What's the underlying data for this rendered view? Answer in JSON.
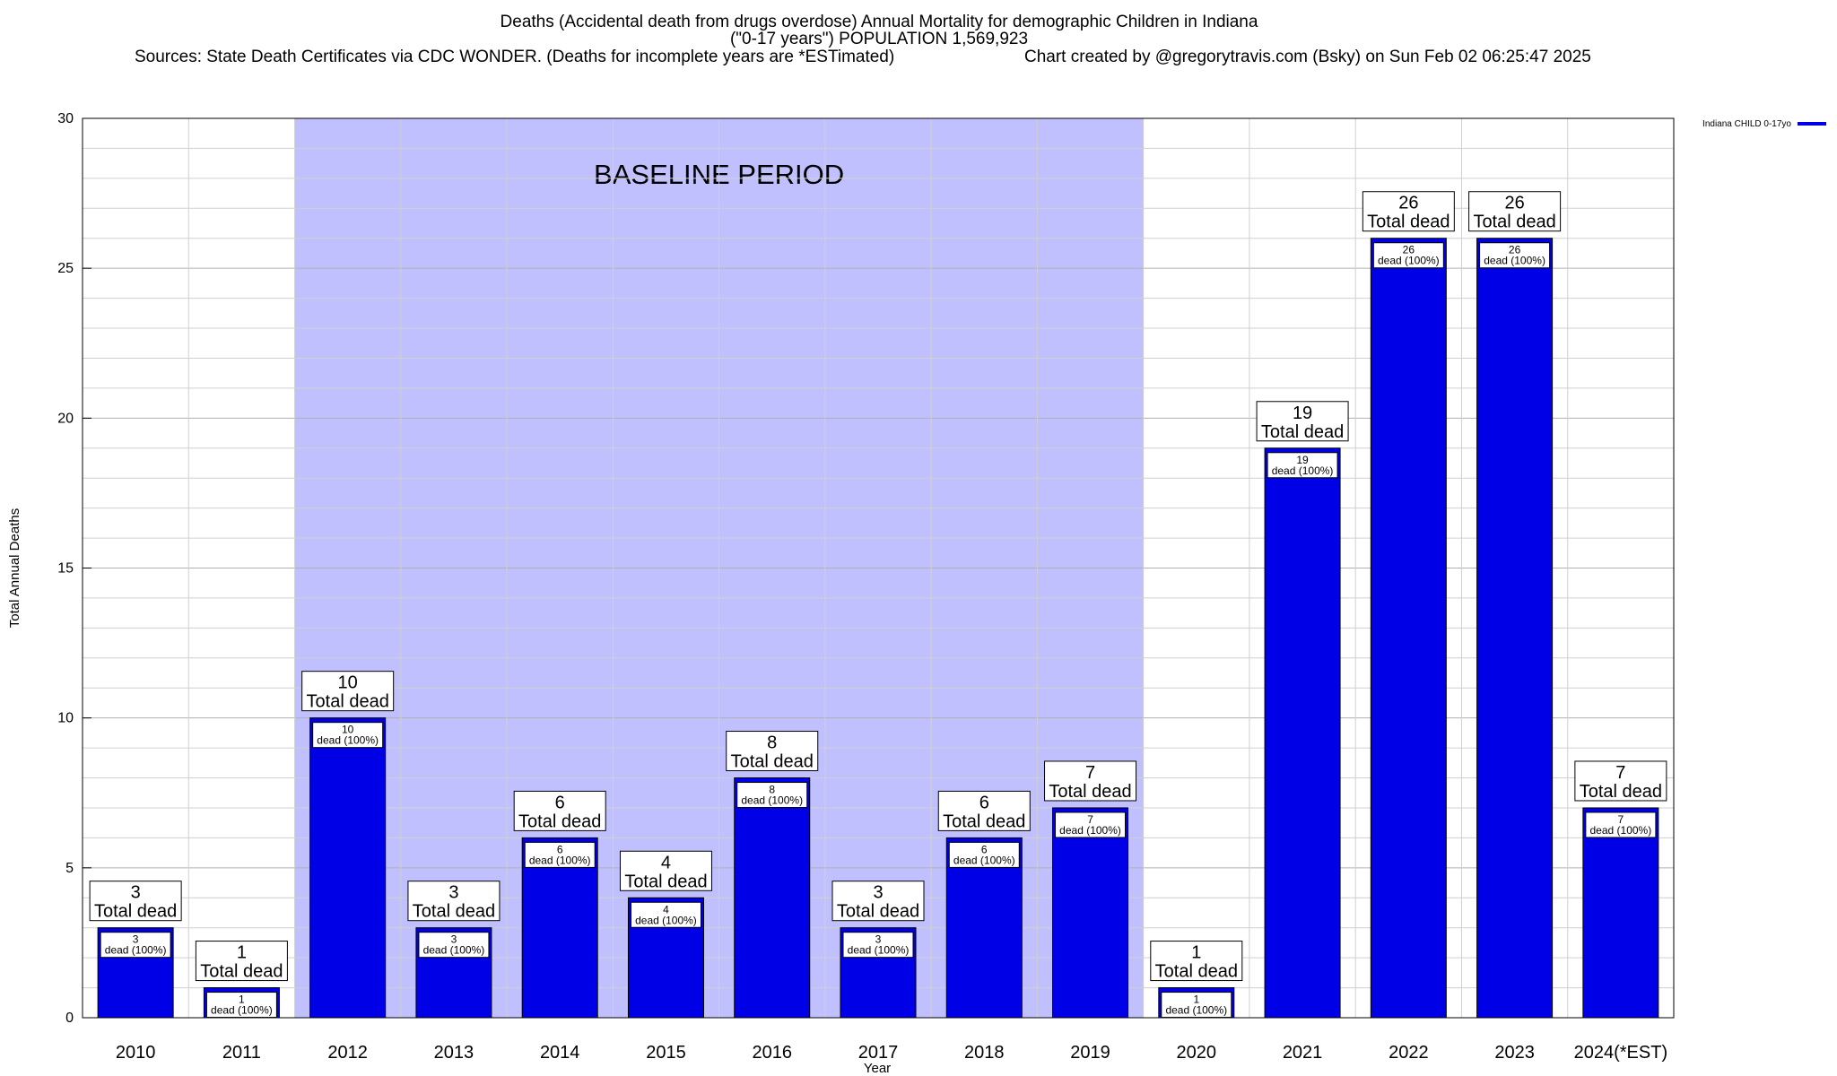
{
  "header": {
    "title_line1": "Deaths (Accidental death from drugs overdose) Annual Mortality for demographic Children in Indiana",
    "title_line2": "(\"0-17 years\") POPULATION 1,569,923",
    "sources": "Sources: State Death Certificates via CDC WONDER. (Deaths for incomplete years are *ESTimated)",
    "credit": "Chart created by @gregorytravis.com (Bsky) on Sun Feb 02 06:25:47 2025"
  },
  "colors": {
    "bar": "#0000e6",
    "bar_outline": "#000000",
    "baseline_band": "#c0c0ff",
    "grid_major": "#b0b0b0",
    "grid_minor": "#d0d0d0"
  },
  "chart_data": {
    "type": "bar",
    "xlabel": "Year",
    "ylabel": "Total Annual Deaths",
    "ylim": [
      0,
      30
    ],
    "yticks": [
      0,
      5,
      10,
      15,
      20,
      25,
      30
    ],
    "grid": true,
    "legend_position": "top-right",
    "categories": [
      "2010",
      "2011",
      "2012",
      "2013",
      "2014",
      "2015",
      "2016",
      "2017",
      "2018",
      "2019",
      "2020",
      "2021",
      "2022",
      "2023",
      "2024(*EST)"
    ],
    "series": [
      {
        "name": "Indiana CHILD 0-17yo",
        "values": [
          3,
          1,
          10,
          3,
          6,
          4,
          8,
          3,
          6,
          7,
          1,
          19,
          26,
          26,
          7
        ]
      }
    ],
    "total_label_suffix": "Total dead",
    "inner_label_suffix": "dead (100%)",
    "annotation": {
      "text": "BASELINE PERIOD",
      "from_category": "2012",
      "to_category": "2019"
    }
  }
}
